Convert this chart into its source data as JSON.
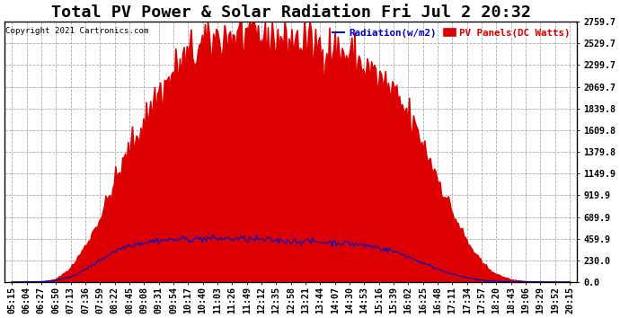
{
  "title": "Total PV Power & Solar Radiation Fri Jul 2 20:32",
  "copyright": "Copyright 2021 Cartronics.com",
  "legend_radiation": "Radiation(w/m2)",
  "legend_pv": "PV Panels(DC Watts)",
  "background_color": "#ffffff",
  "plot_background": "#ffffff",
  "yticks": [
    0.0,
    230.0,
    459.9,
    689.9,
    919.9,
    1149.9,
    1379.8,
    1609.8,
    1839.8,
    2069.7,
    2299.7,
    2529.7,
    2759.7
  ],
  "ymax": 2759.7,
  "ymin": 0.0,
  "xtick_labels": [
    "05:15",
    "06:04",
    "06:27",
    "06:50",
    "07:13",
    "07:36",
    "07:59",
    "08:22",
    "08:45",
    "09:08",
    "09:31",
    "09:54",
    "10:17",
    "10:40",
    "11:03",
    "11:26",
    "11:49",
    "12:12",
    "12:35",
    "12:58",
    "13:21",
    "13:44",
    "14:07",
    "14:30",
    "14:53",
    "15:16",
    "15:39",
    "16:02",
    "16:25",
    "16:48",
    "17:11",
    "17:34",
    "17:57",
    "18:20",
    "18:43",
    "19:06",
    "19:29",
    "19:52",
    "20:15"
  ],
  "grid_color": "#aaaaaa",
  "pv_color": "#dd0000",
  "radiation_color": "#0000cc",
  "title_fontsize": 11,
  "tick_fontsize": 6,
  "pv_base_values": [
    0,
    0,
    0,
    30,
    150,
    380,
    680,
    1050,
    1400,
    1700,
    2000,
    2200,
    2380,
    2500,
    2580,
    2600,
    2610,
    2600,
    2580,
    2550,
    2520,
    2480,
    2440,
    2380,
    2280,
    2150,
    1980,
    1750,
    1450,
    1100,
    730,
    420,
    200,
    80,
    25,
    8,
    2,
    0,
    0
  ],
  "rad_base_values": [
    0,
    2,
    5,
    18,
    55,
    130,
    230,
    330,
    390,
    420,
    440,
    450,
    455,
    460,
    462,
    460,
    455,
    448,
    440,
    435,
    430,
    425,
    418,
    408,
    390,
    365,
    325,
    270,
    200,
    140,
    85,
    45,
    20,
    8,
    3,
    1,
    0,
    0,
    0
  ]
}
